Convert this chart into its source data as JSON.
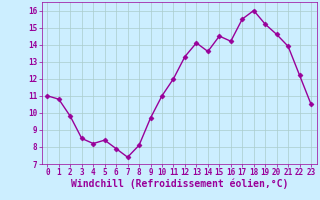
{
  "x": [
    0,
    1,
    2,
    3,
    4,
    5,
    6,
    7,
    8,
    9,
    10,
    11,
    12,
    13,
    14,
    15,
    16,
    17,
    18,
    19,
    20,
    21,
    22,
    23
  ],
  "y": [
    11.0,
    10.8,
    9.8,
    8.5,
    8.2,
    8.4,
    7.9,
    7.4,
    8.1,
    9.7,
    11.0,
    12.0,
    13.3,
    14.1,
    13.6,
    14.5,
    14.2,
    15.5,
    16.0,
    15.2,
    14.6,
    13.9,
    12.2,
    10.5
  ],
  "line_color": "#990099",
  "marker": "D",
  "marker_size": 2.5,
  "bg_color": "#cceeff",
  "grid_color": "#aacccc",
  "xlabel": "Windchill (Refroidissement éolien,°C)",
  "xlabel_color": "#990099",
  "xlim": [
    -0.5,
    23.5
  ],
  "ylim": [
    7,
    16.5
  ],
  "yticks": [
    7,
    8,
    9,
    10,
    11,
    12,
    13,
    14,
    15,
    16
  ],
  "xticks": [
    0,
    1,
    2,
    3,
    4,
    5,
    6,
    7,
    8,
    9,
    10,
    11,
    12,
    13,
    14,
    15,
    16,
    17,
    18,
    19,
    20,
    21,
    22,
    23
  ],
  "tick_color": "#990099",
  "tick_fontsize": 5.5,
  "xlabel_fontsize": 7.0,
  "line_width": 1.0
}
